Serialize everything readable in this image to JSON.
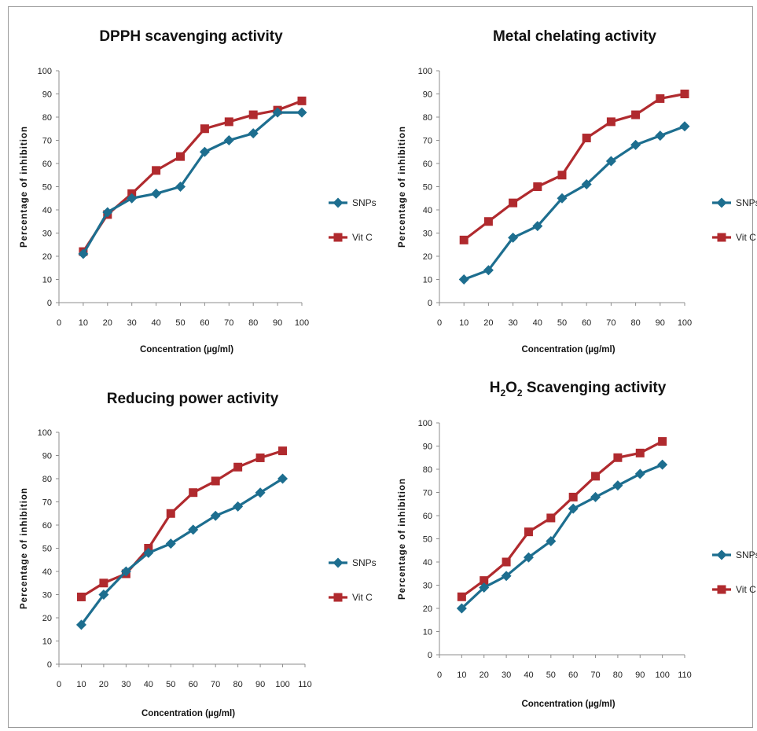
{
  "colors": {
    "snps": "#1d6e8f",
    "vitc": "#b02a2e",
    "axis": "#8c8c8c"
  },
  "chart_data": [
    {
      "type": "line",
      "title": "DPPH scavenging activity",
      "xlabel": "Concentration (µg/ml)",
      "ylabel": "Percentage of inhibition",
      "xlim": [
        0,
        100
      ],
      "xticks": [
        0,
        10,
        20,
        30,
        40,
        50,
        60,
        70,
        80,
        90,
        100
      ],
      "ylim": [
        0,
        100
      ],
      "yticks": [
        0,
        10,
        20,
        30,
        40,
        50,
        60,
        70,
        80,
        90,
        100
      ],
      "legend": "right",
      "x": [
        10,
        20,
        30,
        40,
        50,
        60,
        70,
        80,
        90,
        100
      ],
      "series": [
        {
          "name": "SNPs",
          "marker": "diamond",
          "values": [
            21,
            39,
            45,
            47,
            50,
            65,
            70,
            73,
            82,
            82
          ]
        },
        {
          "name": "Vit C",
          "marker": "square",
          "values": [
            22,
            38,
            47,
            57,
            63,
            75,
            78,
            81,
            83,
            87
          ]
        }
      ]
    },
    {
      "type": "line",
      "title": "Metal chelating activity",
      "xlabel": "Concentration (µg/ml)",
      "ylabel": "Percentage of inhibition",
      "xlim": [
        0,
        100
      ],
      "xticks": [
        0,
        10,
        20,
        30,
        40,
        50,
        60,
        70,
        80,
        90,
        100
      ],
      "ylim": [
        0,
        100
      ],
      "yticks": [
        0,
        10,
        20,
        30,
        40,
        50,
        60,
        70,
        80,
        90,
        100
      ],
      "legend": "right",
      "x": [
        10,
        20,
        30,
        40,
        50,
        60,
        70,
        80,
        90,
        100
      ],
      "series": [
        {
          "name": "SNPs",
          "marker": "diamond",
          "values": [
            10,
            14,
            28,
            33,
            45,
            51,
            61,
            68,
            72,
            76
          ]
        },
        {
          "name": "Vit C",
          "marker": "square",
          "values": [
            27,
            35,
            43,
            50,
            55,
            71,
            78,
            81,
            88,
            90
          ]
        }
      ]
    },
    {
      "type": "line",
      "title": "Reducing power activity",
      "xlabel": "Concentration (µg/ml)",
      "ylabel": "Percentage of inhibition",
      "xlim": [
        0,
        110
      ],
      "xticks": [
        0,
        10,
        20,
        30,
        40,
        50,
        60,
        70,
        80,
        90,
        100,
        110
      ],
      "ylim": [
        0,
        100
      ],
      "yticks": [
        0,
        10,
        20,
        30,
        40,
        50,
        60,
        70,
        80,
        90,
        100
      ],
      "legend": "right",
      "x": [
        10,
        20,
        30,
        40,
        50,
        60,
        70,
        80,
        90,
        100
      ],
      "series": [
        {
          "name": "SNPs",
          "marker": "diamond",
          "values": [
            17,
            30,
            40,
            48,
            52,
            58,
            64,
            68,
            74,
            80
          ]
        },
        {
          "name": "Vit C",
          "marker": "square",
          "values": [
            29,
            35,
            39,
            50,
            65,
            74,
            79,
            85,
            89,
            92
          ]
        }
      ]
    },
    {
      "type": "line",
      "title": "H2O2 Scavenging activity",
      "title_parts": {
        "a": "H",
        "sub1": "2",
        "b": "O",
        "sub2": "2",
        "rest": " Scavenging activity"
      },
      "xlabel": "Concentration (µg/ml)",
      "ylabel": "Percentage of inhibition",
      "xlim": [
        0,
        110
      ],
      "xticks": [
        0,
        10,
        20,
        30,
        40,
        50,
        60,
        70,
        80,
        90,
        100,
        110
      ],
      "ylim": [
        0,
        100
      ],
      "yticks": [
        0,
        10,
        20,
        30,
        40,
        50,
        60,
        70,
        80,
        90,
        100
      ],
      "legend": "right",
      "x": [
        10,
        20,
        30,
        40,
        50,
        60,
        70,
        80,
        90,
        100
      ],
      "series": [
        {
          "name": "SNPs",
          "marker": "diamond",
          "values": [
            20,
            29,
            34,
            42,
            49,
            63,
            68,
            73,
            78,
            82
          ]
        },
        {
          "name": "Vit C",
          "marker": "square",
          "values": [
            25,
            32,
            40,
            53,
            59,
            68,
            77,
            85,
            87,
            92
          ]
        }
      ]
    }
  ]
}
